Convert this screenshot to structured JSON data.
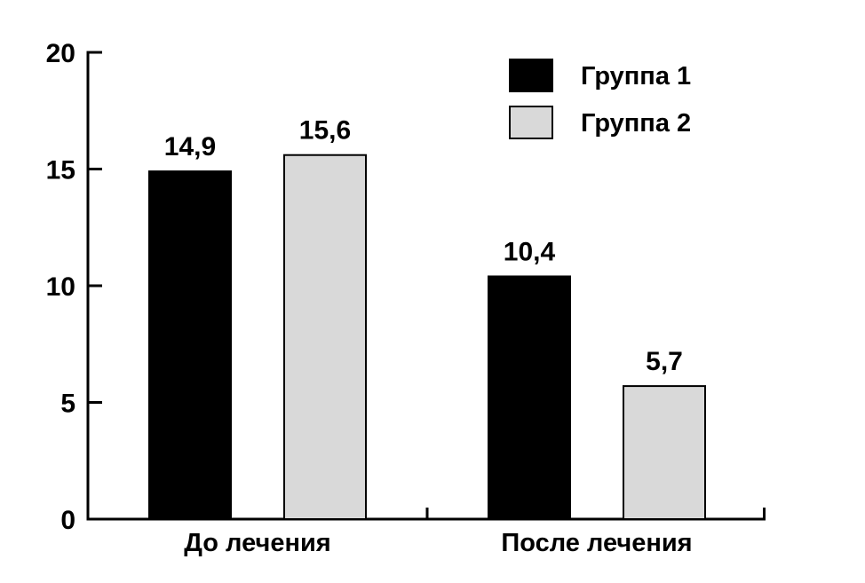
{
  "chart_data": {
    "type": "bar",
    "title": "",
    "xlabel": "",
    "ylabel": "",
    "categories": [
      "До лечения",
      "После лечения"
    ],
    "series": [
      {
        "name": "Группа 1",
        "values": [
          14.9,
          10.4
        ],
        "value_labels": [
          "14,9",
          "10,4"
        ],
        "color": "#000000"
      },
      {
        "name": "Группа 2",
        "values": [
          15.6,
          5.7
        ],
        "value_labels": [
          "15,6",
          "5,7"
        ],
        "color": "#d9d9d9"
      }
    ],
    "yticks": [
      0,
      5,
      10,
      15,
      20
    ],
    "ytick_labels": [
      "0",
      "5",
      "10",
      "15",
      "20"
    ],
    "ylim": [
      0,
      20
    ],
    "grid": false,
    "legend_position": "top-right"
  }
}
